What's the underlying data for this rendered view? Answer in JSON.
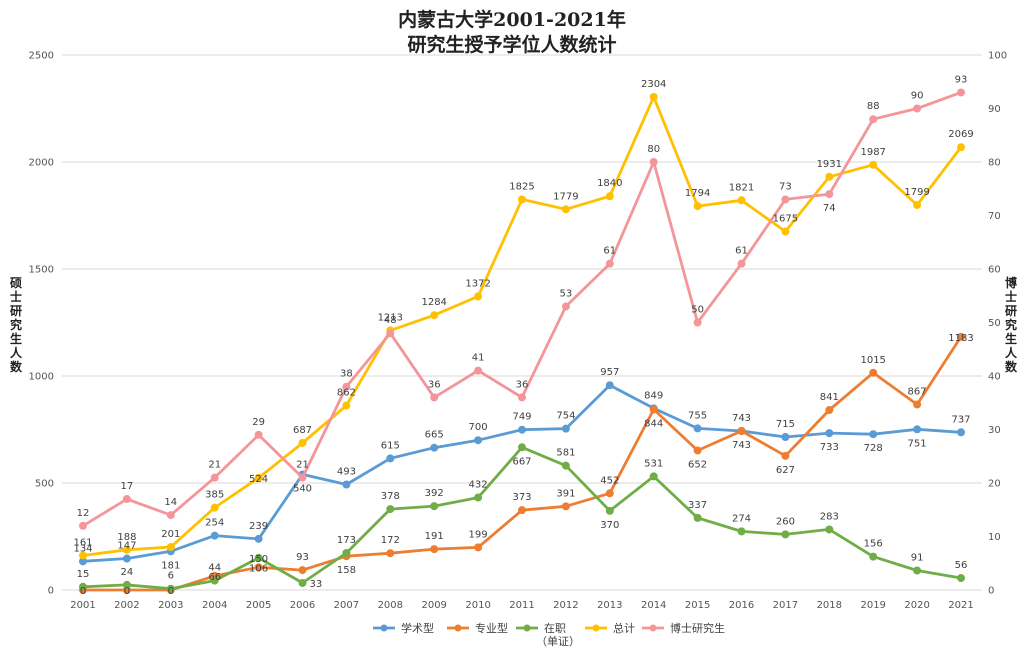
{
  "chart_data": {
    "type": "line",
    "title_line1": "内蒙古大学2001-2021年",
    "title_line2": "研究生授予学位人数统计",
    "ylabel": "硕士研究生人数",
    "y2label": "博士研究生人数",
    "categories": [
      "2001",
      "2002",
      "2003",
      "2004",
      "2005",
      "2006",
      "2007",
      "2008",
      "2009",
      "2010",
      "2011",
      "2012",
      "2013",
      "2014",
      "2015",
      "2016",
      "2017",
      "2018",
      "2019",
      "2020",
      "2021"
    ],
    "ylim": [
      0,
      2500
    ],
    "yticks": [
      0,
      500,
      1000,
      1500,
      2000,
      2500
    ],
    "y2lim": [
      0,
      100
    ],
    "y2ticks": [
      0,
      10,
      20,
      30,
      40,
      50,
      60,
      70,
      80,
      90,
      100
    ],
    "grid": true,
    "legend_position": "bottom",
    "series": [
      {
        "name": "学术型",
        "color": "#5b9bd5",
        "axis": "left",
        "values": [
          134,
          147,
          181,
          254,
          239,
          540,
          493,
          615,
          665,
          700,
          749,
          754,
          957,
          849,
          755,
          743,
          715,
          733,
          728,
          751,
          737
        ],
        "label_pos": [
          "above",
          "above",
          "below",
          "above",
          "above",
          "below",
          "above",
          "above",
          "above",
          "above",
          "above",
          "above",
          "above",
          "above",
          "above",
          "above",
          "above",
          "below",
          "below",
          "below",
          "above"
        ]
      },
      {
        "name": "专业型",
        "color": "#ed7d31",
        "axis": "left",
        "values": [
          0,
          0,
          0,
          66,
          106,
          93,
          158,
          172,
          191,
          199,
          373,
          391,
          452,
          844,
          652,
          743,
          627,
          841,
          1015,
          867,
          1183
        ],
        "label_pos": [
          "center",
          "center",
          "center",
          "center",
          "center",
          "above",
          "below",
          "above",
          "above",
          "above",
          "above",
          "above",
          "above",
          "below",
          "below",
          "below",
          "below",
          "above",
          "above",
          "above",
          "center"
        ]
      },
      {
        "name": "在职",
        "name_note": "（单证）",
        "color": "#70ad47",
        "axis": "left",
        "values": [
          15,
          24,
          6,
          44,
          150,
          33,
          173,
          378,
          392,
          432,
          667,
          581,
          370,
          531,
          337,
          274,
          260,
          283,
          156,
          91,
          56
        ],
        "label_pos": [
          "above",
          "above",
          "above",
          "above",
          "center",
          "right",
          "above",
          "above",
          "above",
          "above",
          "below",
          "above",
          "below",
          "above",
          "above",
          "above",
          "above",
          "above",
          "above",
          "above",
          "above"
        ]
      },
      {
        "name": "总计",
        "color": "#ffc000",
        "axis": "left",
        "values": [
          161,
          188,
          201,
          385,
          524,
          687,
          862,
          1213,
          1284,
          1372,
          1825,
          1779,
          1840,
          2304,
          1794,
          1821,
          1675,
          1931,
          1987,
          1799,
          2069
        ],
        "label_pos": [
          "above",
          "above",
          "above",
          "above",
          "center",
          "above",
          "above",
          "above",
          "above",
          "above",
          "above",
          "above",
          "above",
          "above",
          "above",
          "above",
          "above",
          "above",
          "above",
          "above",
          "above"
        ]
      },
      {
        "name": "博士研究生",
        "color": "#f4959a",
        "axis": "right",
        "values": [
          12,
          17,
          14,
          21,
          29,
          21,
          38,
          48,
          36,
          41,
          36,
          53,
          61,
          80,
          50,
          61,
          73,
          74,
          88,
          90,
          93
        ],
        "label_pos": [
          "above",
          "above",
          "above",
          "above",
          "above",
          "above",
          "above",
          "above",
          "above",
          "above",
          "above",
          "above",
          "above",
          "above",
          "above",
          "above",
          "above",
          "below",
          "above",
          "above",
          "above"
        ]
      }
    ]
  }
}
